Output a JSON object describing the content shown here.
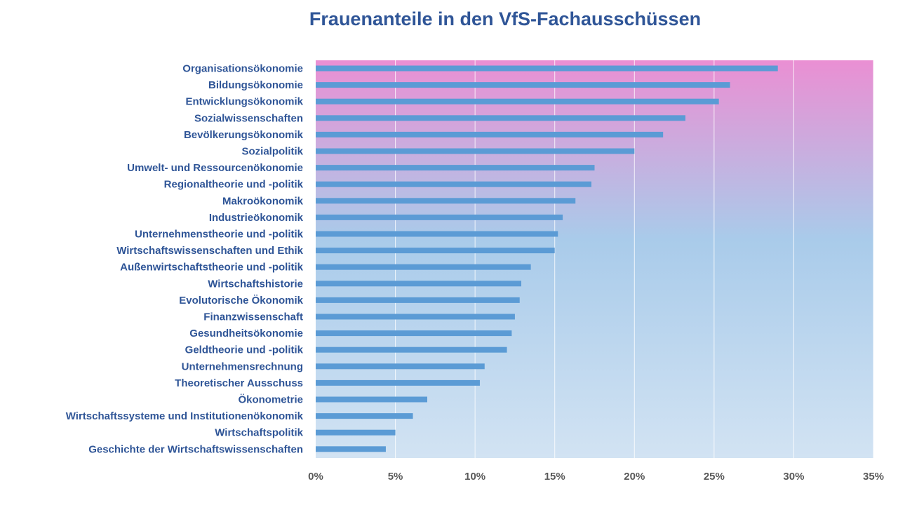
{
  "chart_data": {
    "type": "bar",
    "orientation": "horizontal",
    "title": "Frauenanteile in den VfS-Fachausschüssen",
    "xlabel": "",
    "ylabel": "",
    "xlim": [
      0,
      0.35
    ],
    "grid": true,
    "legend": "none",
    "colors": {
      "bar": "#5b9bd5",
      "title": "#2f5597",
      "labels": "#2f5597",
      "ticks": "#595959",
      "gradient_top": "#ea8fd3",
      "gradient_mid": "#a9cbea",
      "gradient_bottom": "#d2e3f3",
      "grid": "#ffffff"
    },
    "ticks": [
      {
        "value": 0,
        "label": "0%"
      },
      {
        "value": 0.05,
        "label": "5%"
      },
      {
        "value": 0.1,
        "label": "10%"
      },
      {
        "value": 0.15,
        "label": "15%"
      },
      {
        "value": 0.2,
        "label": "20%"
      },
      {
        "value": 0.25,
        "label": "25%"
      },
      {
        "value": 0.3,
        "label": "30%"
      },
      {
        "value": 0.35,
        "label": "35%"
      }
    ],
    "categories": [
      "Organisationsökonomie",
      "Bildungsökonomie",
      "Entwicklungsökonomik",
      "Sozialwissenschaften",
      "Bevölkerungsökonomik",
      "Sozialpolitik",
      "Umwelt- und Ressourcenökonomie",
      "Regionaltheorie und -politik",
      "Makroökonomik",
      "Industrieökonomik",
      "Unternehmenstheorie und -politik",
      "Wirtschaftswissenschaften und Ethik",
      "Außenwirtschaftstheorie und -politik",
      "Wirtschaftshistorie",
      "Evolutorische Ökonomik",
      "Finanzwissenschaft",
      "Gesundheitsökonomie",
      "Geldtheorie und -politik",
      "Unternehmensrechnung",
      "Theoretischer Ausschuss",
      "Ökonometrie",
      "Wirtschaftssysteme und Institutionenökonomik",
      "Wirtschaftspolitik",
      "Geschichte der Wirtschaftswissenschaften"
    ],
    "values": [
      0.29,
      0.26,
      0.253,
      0.232,
      0.218,
      0.2,
      0.175,
      0.173,
      0.163,
      0.155,
      0.152,
      0.15,
      0.135,
      0.129,
      0.128,
      0.125,
      0.123,
      0.12,
      0.106,
      0.103,
      0.07,
      0.061,
      0.05,
      0.044
    ]
  }
}
